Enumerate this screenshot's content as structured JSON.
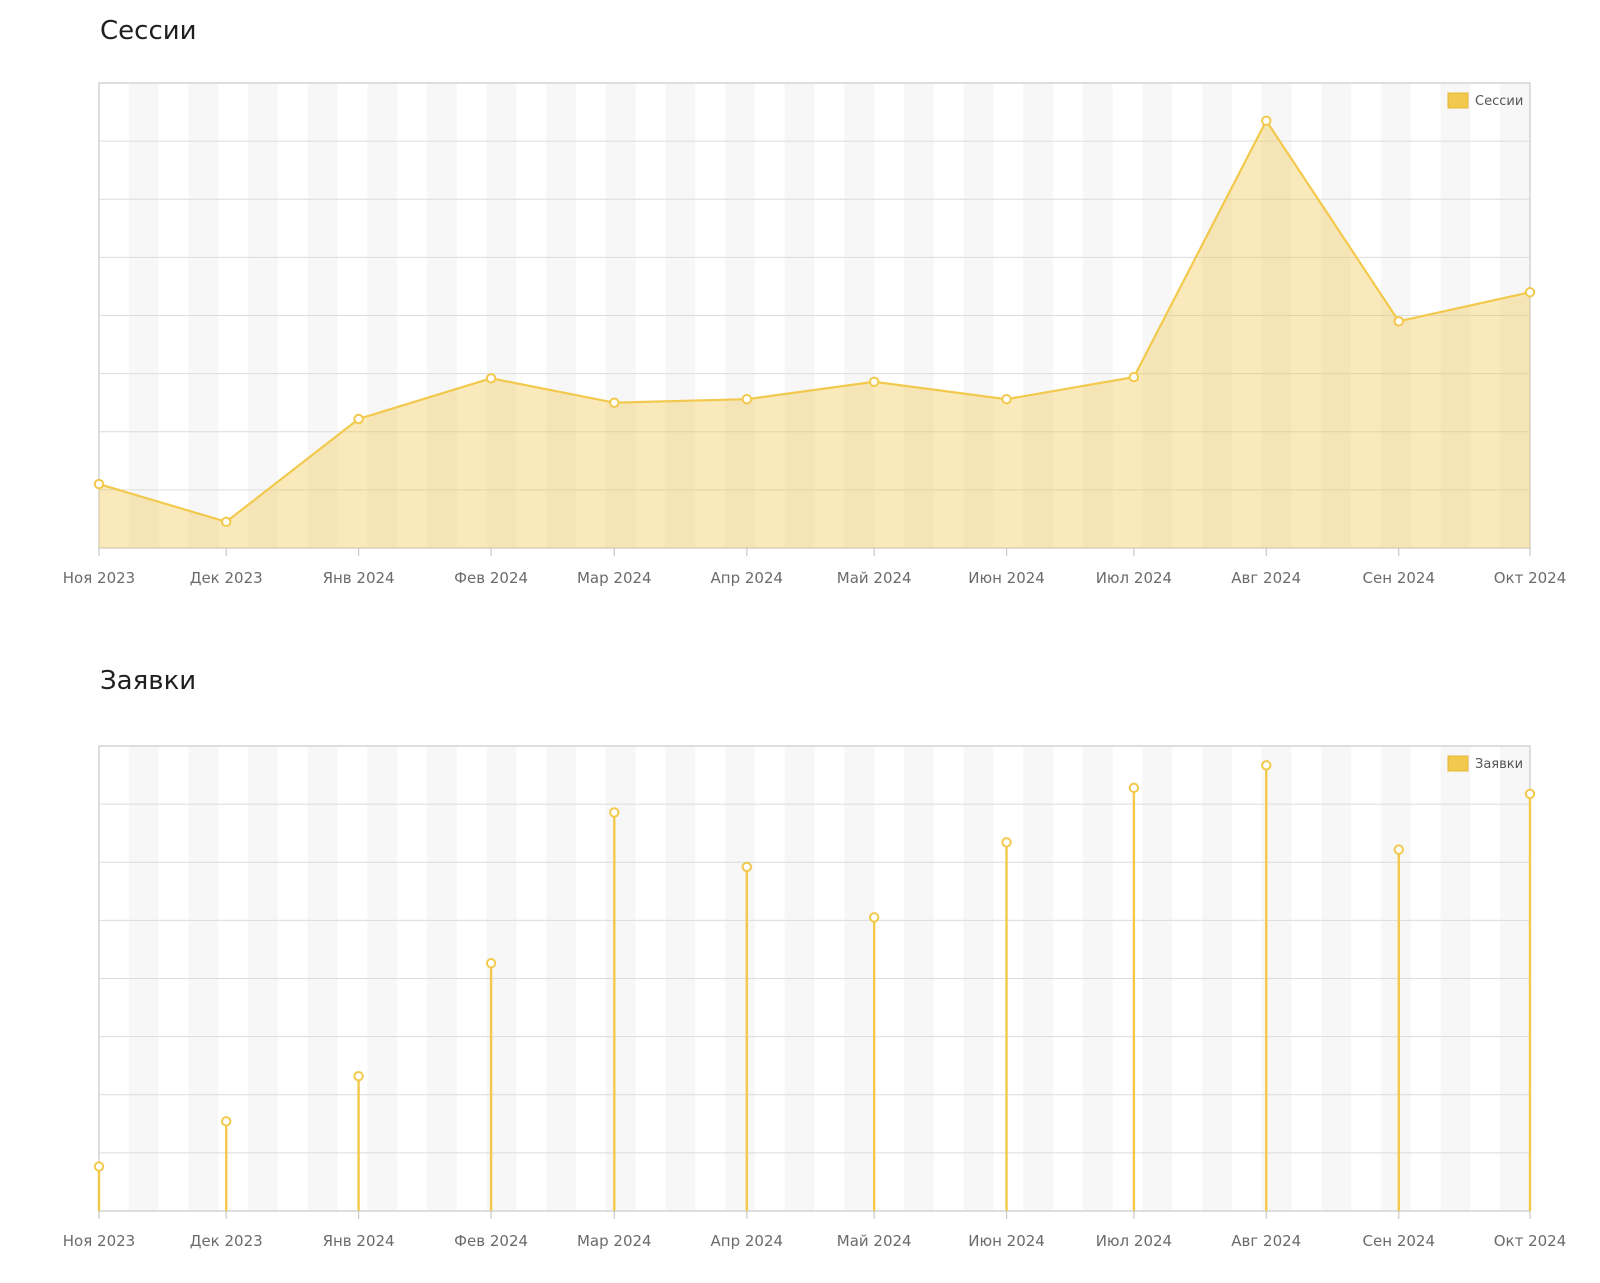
{
  "chart_data": [
    {
      "type": "area",
      "title": "Сессии",
      "categories": [
        "Ноя 2023",
        "Дек 2023",
        "Янв 2024",
        "Фев 2024",
        "Мар 2024",
        "Апр 2024",
        "Май 2024",
        "Июн 2024",
        "Июл 2024",
        "Авг 2024",
        "Сен 2024",
        "Окт 2024"
      ],
      "series": [
        {
          "name": "Сессии",
          "values": [
            1.1,
            0.45,
            2.22,
            2.92,
            2.5,
            2.56,
            2.86,
            2.56,
            2.94,
            7.35,
            3.9,
            4.4
          ]
        }
      ],
      "ylim": [
        0,
        8
      ],
      "grid": true,
      "legend": "top-right",
      "color": "#f2c94c"
    },
    {
      "type": "bar",
      "title": "Заявки",
      "categories": [
        "Ноя 2023",
        "Дек 2023",
        "Янв 2024",
        "Фев 2024",
        "Мар 2024",
        "Апр 2024",
        "Май 2024",
        "Июн 2024",
        "Июл 2024",
        "Авг 2024",
        "Сен 2024",
        "Окт 2024"
      ],
      "series": [
        {
          "name": "Заявки",
          "values": [
            0.67,
            1.35,
            2.03,
            3.73,
            6.0,
            5.18,
            4.42,
            5.55,
            6.37,
            6.71,
            5.44,
            6.28
          ]
        }
      ],
      "ylim": [
        0,
        7
      ],
      "grid": true,
      "legend": "top-right",
      "color": "#f2c94c"
    }
  ]
}
